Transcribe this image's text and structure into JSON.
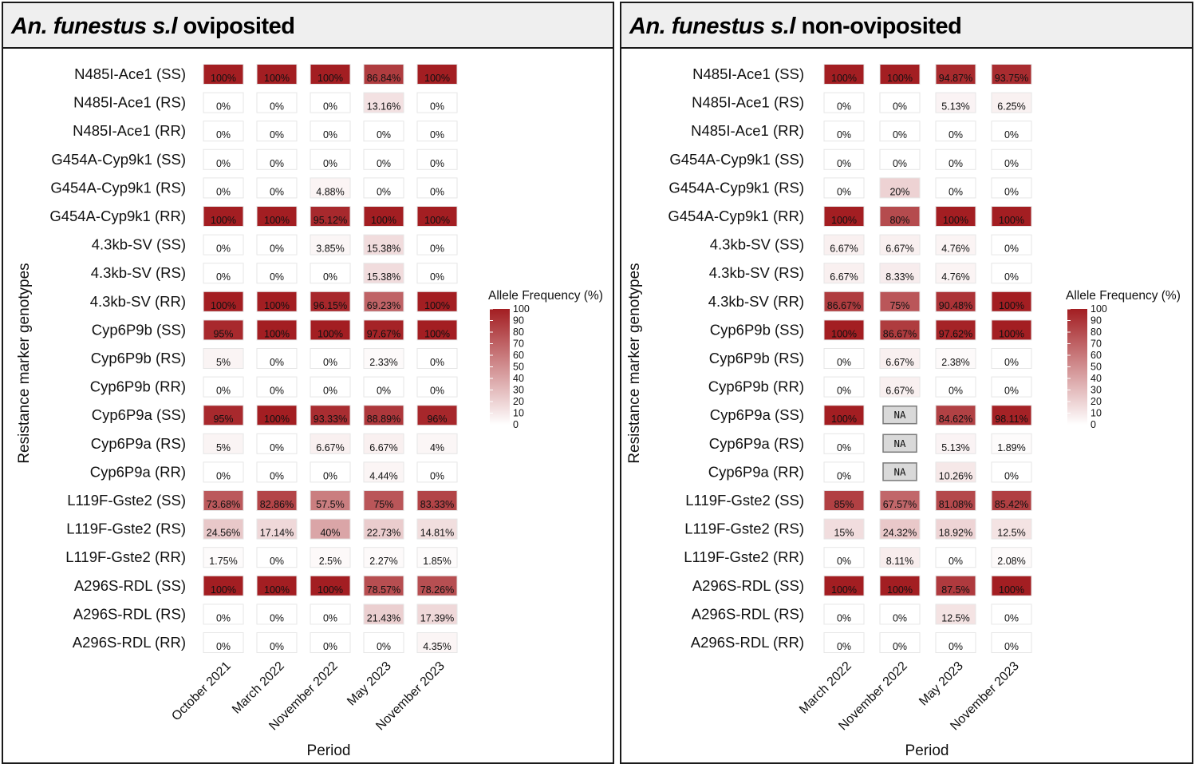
{
  "chart_data": [
    {
      "type": "heatmap",
      "title_species": "An. funestus s.l",
      "title_suffix": " oviposited",
      "xlabel": "Period",
      "ylabel": "Resistance marker genotypes",
      "legend_title": "Allele Frequency (%)",
      "legend_ticks": [
        "100",
        "90",
        "80",
        "70",
        "60",
        "50",
        "40",
        "30",
        "20",
        "10",
        "0"
      ],
      "color_low": "#ffffff",
      "color_high": "#a31e22",
      "value_range": [
        0,
        100
      ],
      "periods": [
        "October 2021",
        "March 2022",
        "November 2022",
        "May 2023",
        "November 2023"
      ],
      "genotypes": [
        "N485I-Ace1 (SS)",
        "N485I-Ace1 (RS)",
        "N485I-Ace1 (RR)",
        "G454A-Cyp9k1 (SS)",
        "G454A-Cyp9k1 (RS)",
        "G454A-Cyp9k1 (RR)",
        "4.3kb-SV (SS)",
        "4.3kb-SV (RS)",
        "4.3kb-SV (RR)",
        "Cyp6P9b (SS)",
        "Cyp6P9b (RS)",
        "Cyp6P9b (RR)",
        "Cyp6P9a (SS)",
        "Cyp6P9a (RS)",
        "Cyp6P9a (RR)",
        "L119F-Gste2 (SS)",
        "L119F-Gste2 (RS)",
        "L119F-Gste2 (RR)",
        "A296S-RDL (SS)",
        "A296S-RDL (RS)",
        "A296S-RDL (RR)"
      ],
      "values": [
        [
          100,
          100,
          100,
          86.84,
          100
        ],
        [
          0,
          0,
          0,
          13.16,
          0
        ],
        [
          0,
          0,
          0,
          0,
          0
        ],
        [
          0,
          0,
          0,
          0,
          0
        ],
        [
          0,
          0,
          4.88,
          0,
          0
        ],
        [
          100,
          100,
          95.12,
          100,
          100
        ],
        [
          0,
          0,
          3.85,
          15.38,
          0
        ],
        [
          0,
          0,
          0,
          15.38,
          0
        ],
        [
          100,
          100,
          96.15,
          69.23,
          100
        ],
        [
          95,
          100,
          100,
          97.67,
          100
        ],
        [
          5,
          0,
          0,
          2.33,
          0
        ],
        [
          0,
          0,
          0,
          0,
          0
        ],
        [
          95,
          100,
          93.33,
          88.89,
          96
        ],
        [
          5,
          0,
          6.67,
          6.67,
          4
        ],
        [
          0,
          0,
          0,
          4.44,
          0
        ],
        [
          73.68,
          82.86,
          57.5,
          75,
          83.33
        ],
        [
          24.56,
          17.14,
          40,
          22.73,
          14.81
        ],
        [
          1.75,
          0,
          2.5,
          2.27,
          1.85
        ],
        [
          100,
          100,
          100,
          78.57,
          78.26
        ],
        [
          0,
          0,
          0,
          21.43,
          17.39
        ],
        [
          0,
          0,
          0,
          0,
          4.35
        ]
      ],
      "labels": [
        [
          "100%",
          "100%",
          "100%",
          "86.84%",
          "100%"
        ],
        [
          "0%",
          "0%",
          "0%",
          "13.16%",
          "0%"
        ],
        [
          "0%",
          "0%",
          "0%",
          "0%",
          "0%"
        ],
        [
          "0%",
          "0%",
          "0%",
          "0%",
          "0%"
        ],
        [
          "0%",
          "0%",
          "4.88%",
          "0%",
          "0%"
        ],
        [
          "100%",
          "100%",
          "95.12%",
          "100%",
          "100%"
        ],
        [
          "0%",
          "0%",
          "3.85%",
          "15.38%",
          "0%"
        ],
        [
          "0%",
          "0%",
          "0%",
          "15.38%",
          "0%"
        ],
        [
          "100%",
          "100%",
          "96.15%",
          "69.23%",
          "100%"
        ],
        [
          "95%",
          "100%",
          "100%",
          "97.67%",
          "100%"
        ],
        [
          "5%",
          "0%",
          "0%",
          "2.33%",
          "0%"
        ],
        [
          "0%",
          "0%",
          "0%",
          "0%",
          "0%"
        ],
        [
          "95%",
          "100%",
          "93.33%",
          "88.89%",
          "96%"
        ],
        [
          "5%",
          "0%",
          "6.67%",
          "6.67%",
          "4%"
        ],
        [
          "0%",
          "0%",
          "0%",
          "4.44%",
          "0%"
        ],
        [
          "73.68%",
          "82.86%",
          "57.5%",
          "75%",
          "83.33%"
        ],
        [
          "24.56%",
          "17.14%",
          "40%",
          "22.73%",
          "14.81%"
        ],
        [
          "1.75%",
          "0%",
          "2.5%",
          "2.27%",
          "1.85%"
        ],
        [
          "100%",
          "100%",
          "100%",
          "78.57%",
          "78.26%"
        ],
        [
          "0%",
          "0%",
          "0%",
          "21.43%",
          "17.39%"
        ],
        [
          "0%",
          "0%",
          "0%",
          "0%",
          "4.35%"
        ]
      ]
    },
    {
      "type": "heatmap",
      "title_species": "An. funestus s.l",
      "title_suffix": " non-oviposited",
      "xlabel": "Period",
      "ylabel": "Resistance marker genotypes",
      "legend_title": "Allele Frequency (%)",
      "legend_ticks": [
        "100",
        "90",
        "80",
        "70",
        "60",
        "50",
        "40",
        "30",
        "20",
        "10",
        "0"
      ],
      "color_low": "#ffffff",
      "color_high": "#a31e22",
      "value_range": [
        0,
        100
      ],
      "periods": [
        "March 2022",
        "November 2022",
        "May 2023",
        "November 2023"
      ],
      "genotypes": [
        "N485I-Ace1 (SS)",
        "N485I-Ace1 (RS)",
        "N485I-Ace1 (RR)",
        "G454A-Cyp9k1 (SS)",
        "G454A-Cyp9k1 (RS)",
        "G454A-Cyp9k1 (RR)",
        "4.3kb-SV (SS)",
        "4.3kb-SV (RS)",
        "4.3kb-SV (RR)",
        "Cyp6P9b (SS)",
        "Cyp6P9b (RS)",
        "Cyp6P9b (RR)",
        "Cyp6P9a (SS)",
        "Cyp6P9a (RS)",
        "Cyp6P9a (RR)",
        "L119F-Gste2 (SS)",
        "L119F-Gste2 (RS)",
        "L119F-Gste2 (RR)",
        "A296S-RDL (SS)",
        "A296S-RDL (RS)",
        "A296S-RDL (RR)"
      ],
      "values": [
        [
          100,
          100,
          94.87,
          93.75
        ],
        [
          0,
          0,
          5.13,
          6.25
        ],
        [
          0,
          0,
          0,
          0
        ],
        [
          0,
          0,
          0,
          0
        ],
        [
          0,
          20,
          0,
          0
        ],
        [
          100,
          80,
          100,
          100
        ],
        [
          6.67,
          6.67,
          4.76,
          0
        ],
        [
          6.67,
          8.33,
          4.76,
          0
        ],
        [
          86.67,
          75,
          90.48,
          100
        ],
        [
          100,
          86.67,
          97.62,
          100
        ],
        [
          0,
          6.67,
          2.38,
          0
        ],
        [
          0,
          6.67,
          0,
          0
        ],
        [
          100,
          null,
          84.62,
          98.11
        ],
        [
          0,
          null,
          5.13,
          1.89
        ],
        [
          0,
          null,
          10.26,
          0
        ],
        [
          85,
          67.57,
          81.08,
          85.42
        ],
        [
          15,
          24.32,
          18.92,
          12.5
        ],
        [
          0,
          8.11,
          0,
          2.08
        ],
        [
          100,
          100,
          87.5,
          100
        ],
        [
          0,
          0,
          12.5,
          0
        ],
        [
          0,
          0,
          0,
          0
        ]
      ],
      "labels": [
        [
          "100%",
          "100%",
          "94.87%",
          "93.75%"
        ],
        [
          "0%",
          "0%",
          "5.13%",
          "6.25%"
        ],
        [
          "0%",
          "0%",
          "0%",
          "0%"
        ],
        [
          "0%",
          "0%",
          "0%",
          "0%"
        ],
        [
          "0%",
          "20%",
          "0%",
          "0%"
        ],
        [
          "100%",
          "80%",
          "100%",
          "100%"
        ],
        [
          "6.67%",
          "6.67%",
          "4.76%",
          "0%"
        ],
        [
          "6.67%",
          "8.33%",
          "4.76%",
          "0%"
        ],
        [
          "86.67%",
          "75%",
          "90.48%",
          "100%"
        ],
        [
          "100%",
          "86.67%",
          "97.62%",
          "100%"
        ],
        [
          "0%",
          "6.67%",
          "2.38%",
          "0%"
        ],
        [
          "0%",
          "6.67%",
          "0%",
          "0%"
        ],
        [
          "100%",
          "NA",
          "84.62%",
          "98.11%"
        ],
        [
          "0%",
          "NA",
          "5.13%",
          "1.89%"
        ],
        [
          "0%",
          "NA",
          "10.26%",
          "0%"
        ],
        [
          "85%",
          "67.57%",
          "81.08%",
          "85.42%"
        ],
        [
          "15%",
          "24.32%",
          "18.92%",
          "12.5%"
        ],
        [
          "0%",
          "8.11%",
          "0%",
          "2.08%"
        ],
        [
          "100%",
          "100%",
          "87.5%",
          "100%"
        ],
        [
          "0%",
          "0%",
          "12.5%",
          "0%"
        ],
        [
          "0%",
          "0%",
          "0%",
          "0%"
        ]
      ]
    }
  ]
}
